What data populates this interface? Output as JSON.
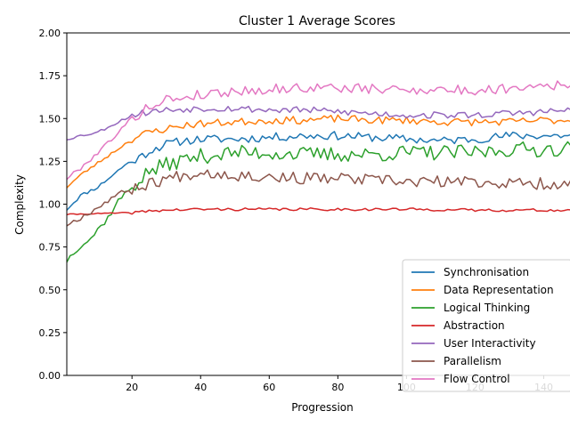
{
  "chart_data": {
    "type": "line",
    "title": "Cluster 1 Average Scores",
    "xlabel": "Progression",
    "ylabel": "Complexity",
    "xlim": [
      1,
      150
    ],
    "ylim": [
      0.0,
      2.0
    ],
    "xticks": [
      20,
      40,
      60,
      80,
      100,
      120,
      140
    ],
    "yticks": [
      0.0,
      0.25,
      0.5,
      0.75,
      1.0,
      1.25,
      1.5,
      1.75,
      2.0
    ],
    "ytick_labels": [
      "0.00",
      "0.25",
      "0.50",
      "0.75",
      "1.00",
      "1.25",
      "1.50",
      "1.75",
      "2.00"
    ],
    "grid": false,
    "legend_position": "lower-right",
    "series": [
      {
        "name": "Synchronisation",
        "color": "#1f77b4",
        "anchors": [
          [
            1,
            0.97
          ],
          [
            5,
            1.05
          ],
          [
            10,
            1.1
          ],
          [
            15,
            1.18
          ],
          [
            18,
            1.23
          ],
          [
            22,
            1.27
          ],
          [
            26,
            1.32
          ],
          [
            30,
            1.35
          ],
          [
            35,
            1.37
          ],
          [
            40,
            1.38
          ],
          [
            50,
            1.38
          ],
          [
            60,
            1.39
          ],
          [
            70,
            1.4
          ],
          [
            80,
            1.4
          ],
          [
            90,
            1.39
          ],
          [
            100,
            1.38
          ],
          [
            110,
            1.37
          ],
          [
            120,
            1.38
          ],
          [
            130,
            1.4
          ],
          [
            140,
            1.4
          ],
          [
            150,
            1.4
          ]
        ],
        "noise": 0.025,
        "seed": 11
      },
      {
        "name": "Data Representation",
        "color": "#ff7f0e",
        "anchors": [
          [
            1,
            1.1
          ],
          [
            5,
            1.17
          ],
          [
            10,
            1.24
          ],
          [
            15,
            1.31
          ],
          [
            20,
            1.38
          ],
          [
            25,
            1.42
          ],
          [
            30,
            1.44
          ],
          [
            35,
            1.46
          ],
          [
            40,
            1.47
          ],
          [
            50,
            1.48
          ],
          [
            60,
            1.49
          ],
          [
            70,
            1.49
          ],
          [
            80,
            1.5
          ],
          [
            90,
            1.49
          ],
          [
            100,
            1.49
          ],
          [
            110,
            1.48
          ],
          [
            120,
            1.48
          ],
          [
            130,
            1.48
          ],
          [
            140,
            1.49
          ],
          [
            150,
            1.49
          ]
        ],
        "noise": 0.022,
        "seed": 23
      },
      {
        "name": "Logical Thinking",
        "color": "#2ca02c",
        "anchors": [
          [
            1,
            0.67
          ],
          [
            3,
            0.72
          ],
          [
            5,
            0.76
          ],
          [
            8,
            0.8
          ],
          [
            10,
            0.85
          ],
          [
            13,
            0.92
          ],
          [
            16,
            1.02
          ],
          [
            20,
            1.1
          ],
          [
            25,
            1.19
          ],
          [
            30,
            1.23
          ],
          [
            35,
            1.26
          ],
          [
            40,
            1.28
          ],
          [
            50,
            1.3
          ],
          [
            60,
            1.3
          ],
          [
            70,
            1.29
          ],
          [
            80,
            1.29
          ],
          [
            90,
            1.29
          ],
          [
            100,
            1.3
          ],
          [
            110,
            1.3
          ],
          [
            120,
            1.3
          ],
          [
            130,
            1.32
          ],
          [
            140,
            1.32
          ],
          [
            150,
            1.33
          ]
        ],
        "noise": 0.045,
        "seed": 37
      },
      {
        "name": "Abstraction",
        "color": "#d62728",
        "anchors": [
          [
            1,
            0.94
          ],
          [
            10,
            0.945
          ],
          [
            20,
            0.95
          ],
          [
            25,
            0.96
          ],
          [
            30,
            0.965
          ],
          [
            40,
            0.97
          ],
          [
            60,
            0.97
          ],
          [
            80,
            0.97
          ],
          [
            100,
            0.97
          ],
          [
            120,
            0.965
          ],
          [
            140,
            0.965
          ],
          [
            150,
            0.96
          ]
        ],
        "noise": 0.008,
        "seed": 41
      },
      {
        "name": "User Interactivity",
        "color": "#9467bd",
        "anchors": [
          [
            1,
            1.38
          ],
          [
            5,
            1.4
          ],
          [
            10,
            1.42
          ],
          [
            15,
            1.47
          ],
          [
            20,
            1.52
          ],
          [
            25,
            1.54
          ],
          [
            30,
            1.55
          ],
          [
            40,
            1.56
          ],
          [
            50,
            1.56
          ],
          [
            60,
            1.55
          ],
          [
            70,
            1.55
          ],
          [
            80,
            1.54
          ],
          [
            90,
            1.53
          ],
          [
            100,
            1.52
          ],
          [
            110,
            1.52
          ],
          [
            120,
            1.52
          ],
          [
            130,
            1.53
          ],
          [
            140,
            1.54
          ],
          [
            150,
            1.55
          ]
        ],
        "noise": 0.02,
        "seed": 53
      },
      {
        "name": "Parallelism",
        "color": "#8c564b",
        "anchors": [
          [
            1,
            0.88
          ],
          [
            5,
            0.92
          ],
          [
            10,
            0.98
          ],
          [
            15,
            1.05
          ],
          [
            20,
            1.09
          ],
          [
            25,
            1.12
          ],
          [
            30,
            1.15
          ],
          [
            35,
            1.17
          ],
          [
            40,
            1.19
          ],
          [
            50,
            1.17
          ],
          [
            60,
            1.16
          ],
          [
            70,
            1.15
          ],
          [
            80,
            1.15
          ],
          [
            90,
            1.14
          ],
          [
            100,
            1.13
          ],
          [
            110,
            1.13
          ],
          [
            120,
            1.13
          ],
          [
            130,
            1.12
          ],
          [
            140,
            1.12
          ],
          [
            150,
            1.12
          ]
        ],
        "noise": 0.035,
        "seed": 67
      },
      {
        "name": "Flow Control",
        "color": "#e377c2",
        "anchors": [
          [
            1,
            1.15
          ],
          [
            5,
            1.21
          ],
          [
            10,
            1.3
          ],
          [
            15,
            1.4
          ],
          [
            20,
            1.5
          ],
          [
            25,
            1.57
          ],
          [
            30,
            1.61
          ],
          [
            40,
            1.64
          ],
          [
            50,
            1.66
          ],
          [
            60,
            1.67
          ],
          [
            70,
            1.68
          ],
          [
            80,
            1.68
          ],
          [
            90,
            1.67
          ],
          [
            100,
            1.67
          ],
          [
            110,
            1.67
          ],
          [
            120,
            1.66
          ],
          [
            130,
            1.68
          ],
          [
            140,
            1.7
          ],
          [
            150,
            1.69
          ]
        ],
        "noise": 0.03,
        "seed": 79
      }
    ]
  }
}
